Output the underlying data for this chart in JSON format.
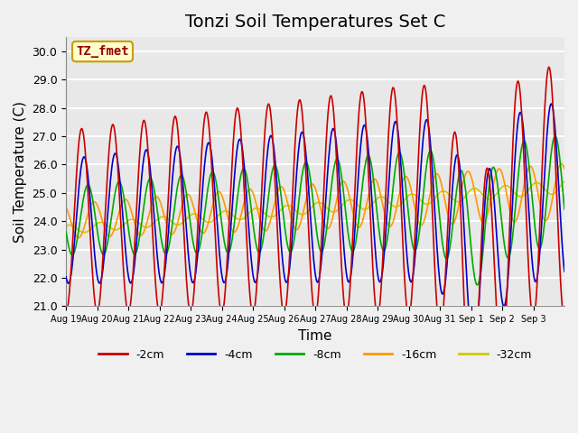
{
  "title": "Tonzi Soil Temperatures Set C",
  "xlabel": "Time",
  "ylabel": "Soil Temperature (C)",
  "ylim": [
    21.0,
    30.5
  ],
  "yticks": [
    21.0,
    22.0,
    23.0,
    24.0,
    25.0,
    26.0,
    27.0,
    28.0,
    29.0,
    30.0
  ],
  "x_tick_labels": [
    "Aug 19",
    "Aug 20",
    "Aug 21",
    "Aug 22",
    "Aug 23",
    "Aug 24",
    "Aug 25",
    "Aug 26",
    "Aug 27",
    "Aug 28",
    "Aug 29",
    "Aug 30",
    "Aug 31",
    "Sep 1",
    "Sep 2",
    "Sep 3"
  ],
  "series_colors": [
    "#cc0000",
    "#0000cc",
    "#00aa00",
    "#ff9900",
    "#cccc00"
  ],
  "series_labels": [
    "-2cm",
    "-4cm",
    "-8cm",
    "-16cm",
    "-32cm"
  ],
  "annotation_text": "TZ_fmet",
  "annotation_bg": "#ffffcc",
  "annotation_border": "#cc9900",
  "fig_bg": "#f0f0f0",
  "plot_bg": "#e8e8e8",
  "grid_color": "#ffffff",
  "title_fontsize": 14,
  "label_fontsize": 11
}
